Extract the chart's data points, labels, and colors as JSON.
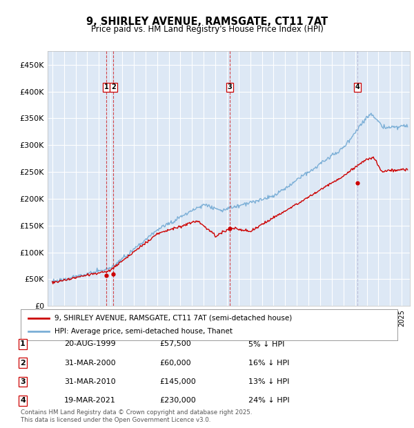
{
  "title": "9, SHIRLEY AVENUE, RAMSGATE, CT11 7AT",
  "subtitle": "Price paid vs. HM Land Registry's House Price Index (HPI)",
  "ylim": [
    0,
    475000
  ],
  "yticks": [
    0,
    50000,
    100000,
    150000,
    200000,
    250000,
    300000,
    350000,
    400000,
    450000
  ],
  "ytick_labels": [
    "£0",
    "£50K",
    "£100K",
    "£150K",
    "£200K",
    "£250K",
    "£300K",
    "£350K",
    "£400K",
    "£450K"
  ],
  "xlim_start": 1994.6,
  "xlim_end": 2025.7,
  "plot_bg_color": "#dde8f5",
  "hpi_color": "#7aaed6",
  "price_color": "#cc0000",
  "vline_color_red": "#cc0000",
  "vline_color_blue": "#aaaacc",
  "transaction_markers": [
    {
      "num": 1,
      "year_x": 1999.64,
      "price": 57500,
      "date": "20-AUG-1999",
      "label": "£57,500",
      "hpi_note": "5% ↓ HPI"
    },
    {
      "num": 2,
      "year_x": 2000.25,
      "price": 60000,
      "date": "31-MAR-2000",
      "label": "£60,000",
      "hpi_note": "16% ↓ HPI"
    },
    {
      "num": 3,
      "year_x": 2010.25,
      "price": 145000,
      "date": "31-MAR-2010",
      "label": "£145,000",
      "hpi_note": "13% ↓ HPI"
    },
    {
      "num": 4,
      "year_x": 2021.22,
      "price": 230000,
      "date": "19-MAR-2021",
      "label": "£230,000",
      "hpi_note": "24% ↓ HPI"
    }
  ],
  "legend_entries": [
    "9, SHIRLEY AVENUE, RAMSGATE, CT11 7AT (semi-detached house)",
    "HPI: Average price, semi-detached house, Thanet"
  ],
  "footer_line1": "Contains HM Land Registry data © Crown copyright and database right 2025.",
  "footer_line2": "This data is licensed under the Open Government Licence v3.0."
}
